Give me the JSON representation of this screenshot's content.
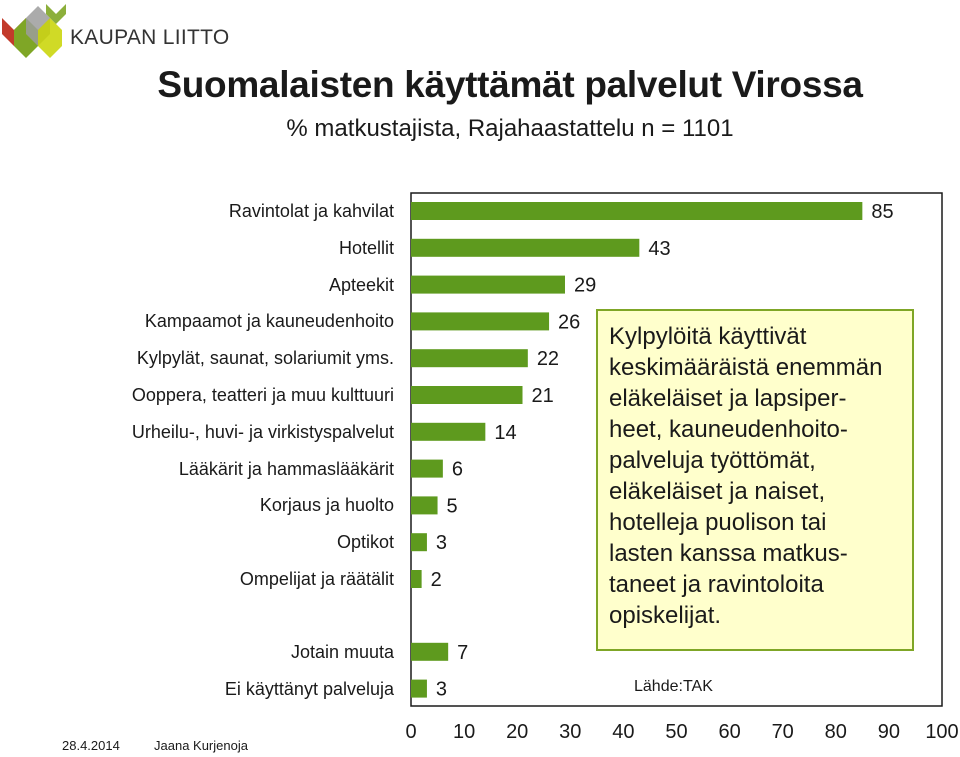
{
  "brand": {
    "name": "KAUPAN LIITTO",
    "colors": {
      "green": "#7fa626",
      "red": "#c23b2b",
      "gray": "#6b6b6b"
    }
  },
  "title": "Suomalaisten käyttämät palvelut Virossa",
  "subtitle": "% matkustajista, Rajahaastattelu n = 1101",
  "chart_data": {
    "type": "bar",
    "orientation": "horizontal",
    "bar_color": "#5e9a1e",
    "xlim": [
      0,
      100
    ],
    "xticks": [
      0,
      10,
      20,
      30,
      40,
      50,
      60,
      70,
      80,
      90,
      100
    ],
    "grid": false,
    "data_labels": true,
    "categories": [
      "Ravintolat ja kahvilat",
      "Hotellit",
      "Apteekit",
      "Kampaamot ja kauneudenhoito",
      "Kylpylät, saunat, solariumit yms.",
      "Ooppera, teatteri ja muu kulttuuri",
      "Urheilu-, huvi- ja virkistyspalvelut",
      "Lääkärit ja hammaslääkärit",
      "Korjaus ja huolto",
      "Optikot",
      "Ompelijat ja räätälit",
      "Jotain muuta",
      "Ei käyttänyt palveluja"
    ],
    "values": [
      85,
      43,
      29,
      26,
      22,
      21,
      14,
      6,
      5,
      3,
      2,
      7,
      3
    ],
    "gap_before_index": 11
  },
  "note": "Kylpylöitä käyttivät\nkeskimääräistä enemmän\neläkeläiset ja lapsiper-\nheet, kauneudenhoito-\npalveluja työttömät,\neläkeläiset ja naiset,\nhotelleja puolison tai\nlasten kanssa matkus-\ntaneet ja ravintoloita\nopiskelijat.",
  "source": "Lähde:TAK",
  "footer": {
    "date": "28.4.2014",
    "author": "Jaana Kurjenoja"
  }
}
